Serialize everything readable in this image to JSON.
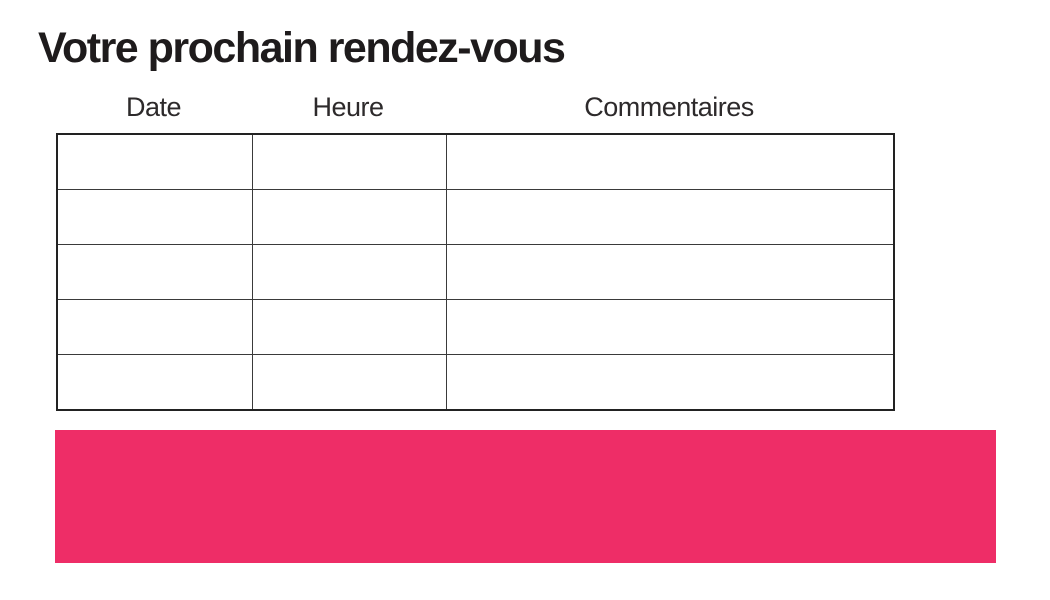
{
  "page": {
    "title": "Votre prochain rendez-vous"
  },
  "table": {
    "columns": [
      {
        "label": "Date"
      },
      {
        "label": "Heure"
      },
      {
        "label": "Commentaires"
      }
    ],
    "rows": [
      [
        "",
        "",
        ""
      ],
      [
        "",
        "",
        ""
      ],
      [
        "",
        "",
        ""
      ],
      [
        "",
        "",
        ""
      ],
      [
        "",
        "",
        ""
      ]
    ]
  },
  "banner": {
    "text": ""
  },
  "colors": {
    "accent_pink": "#EE2D67",
    "title_text": "#1E1B1C",
    "header_text": "#2D2A2B",
    "table_border": "#3A3A3A"
  }
}
